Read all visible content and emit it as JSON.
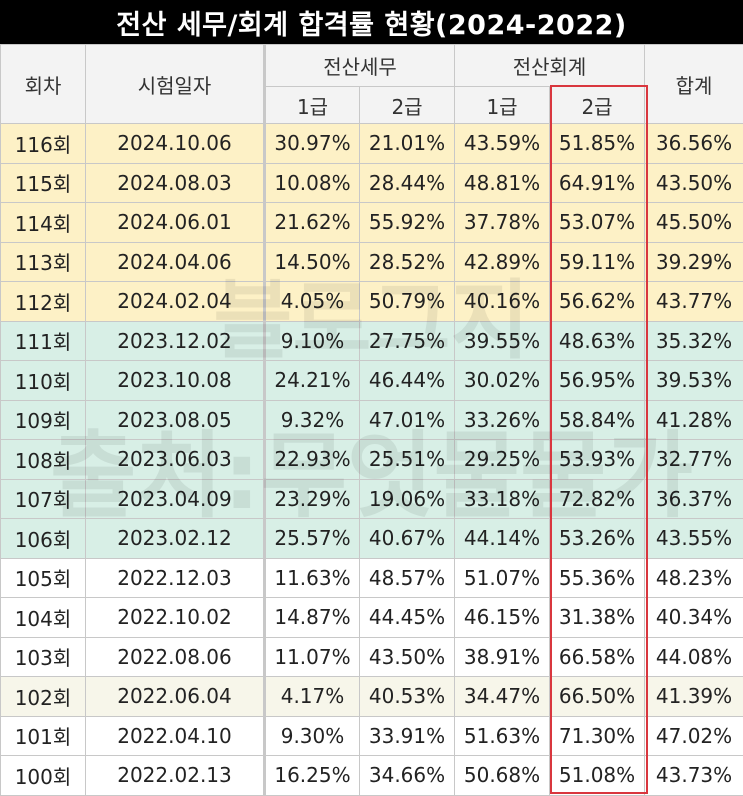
{
  "title": "전산 세무/회계 합격률 현황(2024-2022)",
  "headers": {
    "round": "회차",
    "exam_date": "시험일자",
    "tax": "전산세무",
    "accounting": "전산회계",
    "total": "합계",
    "grade1": "1급",
    "grade2": "2급"
  },
  "watermark": {
    "line1": "블로그지",
    "line2": "출처:무엇물물가"
  },
  "rows": [
    {
      "round": "116회",
      "date": "2024.10.06",
      "tax1": "30.97%",
      "tax2": "21.01%",
      "acc1": "43.59%",
      "acc2": "51.85%",
      "total": "36.56%"
    },
    {
      "round": "115회",
      "date": "2024.08.03",
      "tax1": "10.08%",
      "tax2": "28.44%",
      "acc1": "48.81%",
      "acc2": "64.91%",
      "total": "43.50%"
    },
    {
      "round": "114회",
      "date": "2024.06.01",
      "tax1": "21.62%",
      "tax2": "55.92%",
      "acc1": "37.78%",
      "acc2": "53.07%",
      "total": "45.50%"
    },
    {
      "round": "113회",
      "date": "2024.04.06",
      "tax1": "14.50%",
      "tax2": "28.52%",
      "acc1": "42.89%",
      "acc2": "59.11%",
      "total": "39.29%"
    },
    {
      "round": "112회",
      "date": "2024.02.04",
      "tax1": "4.05%",
      "tax2": "50.79%",
      "acc1": "40.16%",
      "acc2": "56.62%",
      "total": "43.77%"
    },
    {
      "round": "111회",
      "date": "2023.12.02",
      "tax1": "9.10%",
      "tax2": "27.75%",
      "acc1": "39.55%",
      "acc2": "48.63%",
      "total": "35.32%"
    },
    {
      "round": "110회",
      "date": "2023.10.08",
      "tax1": "24.21%",
      "tax2": "46.44%",
      "acc1": "30.02%",
      "acc2": "56.95%",
      "total": "39.53%"
    },
    {
      "round": "109회",
      "date": "2023.08.05",
      "tax1": "9.32%",
      "tax2": "47.01%",
      "acc1": "33.26%",
      "acc2": "58.84%",
      "total": "41.28%"
    },
    {
      "round": "108회",
      "date": "2023.06.03",
      "tax1": "22.93%",
      "tax2": "25.51%",
      "acc1": "29.25%",
      "acc2": "53.93%",
      "total": "32.77%"
    },
    {
      "round": "107회",
      "date": "2023.04.09",
      "tax1": "23.29%",
      "tax2": "19.06%",
      "acc1": "33.18%",
      "acc2": "72.82%",
      "total": "36.37%"
    },
    {
      "round": "106회",
      "date": "2023.02.12",
      "tax1": "25.57%",
      "tax2": "40.67%",
      "acc1": "44.14%",
      "acc2": "53.26%",
      "total": "43.55%"
    },
    {
      "round": "105회",
      "date": "2022.12.03",
      "tax1": "11.63%",
      "tax2": "48.57%",
      "acc1": "51.07%",
      "acc2": "55.36%",
      "total": "48.23%"
    },
    {
      "round": "104회",
      "date": "2022.10.02",
      "tax1": "14.87%",
      "tax2": "44.45%",
      "acc1": "46.15%",
      "acc2": "31.38%",
      "total": "40.34%"
    },
    {
      "round": "103회",
      "date": "2022.08.06",
      "tax1": "11.07%",
      "tax2": "43.50%",
      "acc1": "38.91%",
      "acc2": "66.58%",
      "total": "44.08%"
    },
    {
      "round": "102회",
      "date": "2022.06.04",
      "tax1": "4.17%",
      "tax2": "40.53%",
      "acc1": "34.47%",
      "acc2": "66.50%",
      "total": "41.39%"
    },
    {
      "round": "101회",
      "date": "2022.04.10",
      "tax1": "9.30%",
      "tax2": "33.91%",
      "acc1": "51.63%",
      "acc2": "71.30%",
      "total": "47.02%"
    },
    {
      "round": "100회",
      "date": "2022.02.13",
      "tax1": "16.25%",
      "tax2": "34.66%",
      "acc1": "50.68%",
      "acc2": "51.08%",
      "total": "43.73%"
    }
  ],
  "colors": {
    "title_bg": "#000000",
    "year_2024_row": "#fdf1c6",
    "year_2023_row": "#d8efe6",
    "highlight_border": "#d9363e"
  }
}
